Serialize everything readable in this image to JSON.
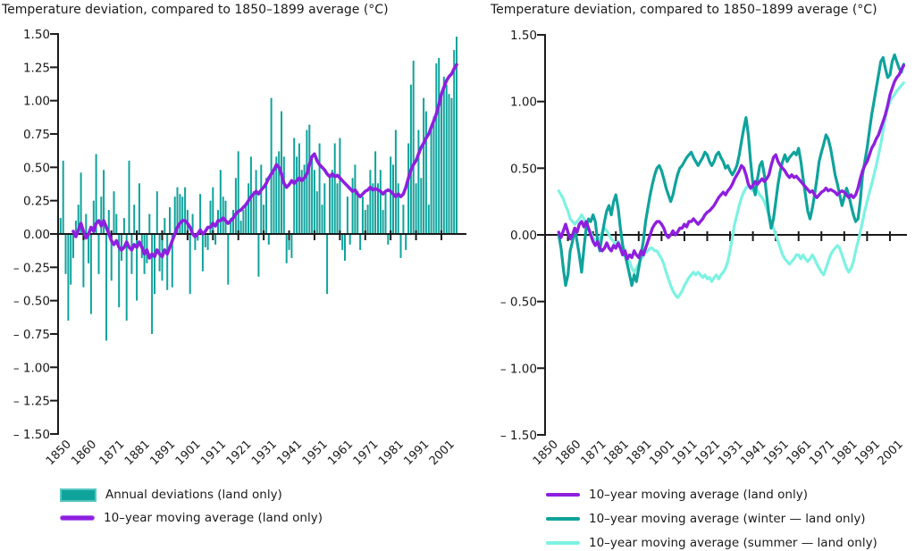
{
  "chart_data": [
    {
      "type": "bar",
      "title": "Temperature deviation, compared to 1850–1899 average (°C)",
      "ylim": [
        -1.5,
        1.5
      ],
      "y_tick_step": 0.25,
      "grid": false,
      "y_ticks": [
        {
          "v": 1.5,
          "label": "1.50"
        },
        {
          "v": 1.25,
          "label": "1.25"
        },
        {
          "v": 1.0,
          "label": "1.00"
        },
        {
          "v": 0.75,
          "label": "0.75"
        },
        {
          "v": 0.5,
          "label": "0.50"
        },
        {
          "v": 0.25,
          "label": "0.25"
        },
        {
          "v": 0.0,
          "label": "0.00"
        },
        {
          "v": -0.25,
          "label": "– 0.25"
        },
        {
          "v": -0.5,
          "label": "– 0.50"
        },
        {
          "v": -0.75,
          "label": "– 0.75"
        },
        {
          "v": -1.0,
          "label": "– 1.00"
        },
        {
          "v": -1.25,
          "label": "– 1.25"
        },
        {
          "v": -1.5,
          "label": "– 1.50"
        }
      ],
      "x_ticks": [
        {
          "year": 1850,
          "label": "1850"
        },
        {
          "year": 1860,
          "label": "1860"
        },
        {
          "year": 1871,
          "label": "1871"
        },
        {
          "year": 1881,
          "label": "1881"
        },
        {
          "year": 1891,
          "label": "1891"
        },
        {
          "year": 1901,
          "label": "1901"
        },
        {
          "year": 1911,
          "label": "1911"
        },
        {
          "year": 1921,
          "label": "1921"
        },
        {
          "year": 1931,
          "label": "1931"
        },
        {
          "year": 1941,
          "label": "1941"
        },
        {
          "year": 1951,
          "label": "1951"
        },
        {
          "year": 1961,
          "label": "1961"
        },
        {
          "year": 1971,
          "label": "1971"
        },
        {
          "year": 1981,
          "label": "1981"
        },
        {
          "year": 1991,
          "label": "1991"
        },
        {
          "year": 2001,
          "label": "2001"
        }
      ],
      "bars": {
        "name": "Annual deviations (land only)",
        "color": "#0fa39c",
        "start_year": 1850,
        "values": [
          -0.28,
          0.12,
          0.55,
          -0.3,
          -0.65,
          -0.38,
          -0.18,
          0.1,
          0.22,
          0.46,
          -0.4,
          0.15,
          -0.22,
          -0.6,
          0.25,
          0.6,
          -0.3,
          0.28,
          0.48,
          -0.8,
          0.18,
          -0.35,
          0.32,
          0.15,
          -0.55,
          -0.2,
          0.12,
          -0.65,
          0.55,
          -0.3,
          0.22,
          -0.5,
          0.38,
          -0.18,
          -0.3,
          -0.22,
          0.15,
          -0.75,
          -0.45,
          0.32,
          -0.28,
          -0.35,
          0.12,
          -0.42,
          0.2,
          -0.4,
          0.28,
          0.35,
          0.3,
          0.28,
          0.35,
          0.18,
          -0.45,
          0.15,
          -0.12,
          -0.05,
          0.3,
          -0.28,
          -0.1,
          -0.12,
          0.25,
          0.35,
          -0.08,
          0.18,
          0.48,
          0.28,
          0.25,
          -0.38,
          0.12,
          0.18,
          0.42,
          0.62,
          0.1,
          0.18,
          0.22,
          0.38,
          0.58,
          0.32,
          0.48,
          -0.32,
          0.52,
          0.22,
          0.42,
          -0.08,
          1.02,
          0.48,
          0.58,
          0.62,
          0.92,
          0.58,
          -0.22,
          -0.12,
          -0.18,
          0.72,
          0.58,
          0.68,
          0.48,
          0.52,
          0.78,
          0.82,
          0.58,
          0.48,
          0.32,
          0.68,
          0.22,
          0.38,
          -0.45,
          0.42,
          0.48,
          0.68,
          0.38,
          0.72,
          -0.12,
          -0.2,
          0.28,
          -0.08,
          0.42,
          0.52,
          0.32,
          -0.12,
          0.28,
          0.18,
          0.22,
          0.48,
          0.38,
          0.62,
          0.38,
          0.48,
          0.18,
          0.32,
          -0.08,
          0.58,
          0.52,
          0.78,
          0.38,
          -0.18,
          0.22,
          -0.12,
          0.68,
          1.12,
          1.3,
          0.38,
          0.78,
          0.42,
          1.02,
          0.92,
          0.22,
          0.82,
          0.88,
          1.28,
          1.32,
          1.02,
          1.18,
          1.12,
          1.05,
          1.02,
          1.38,
          1.48
        ]
      },
      "lines": [
        {
          "name": "10–year moving average (land only)",
          "color": "#8e1fdf",
          "width": 3.6,
          "start_year": 1856,
          "values": [
            0.02,
            -0.02,
            0.03,
            0.08,
            0.02,
            -0.03,
            0.0,
            0.05,
            0.02,
            0.08,
            0.1,
            0.06,
            0.1,
            0.05,
            0.0,
            -0.05,
            -0.08,
            -0.05,
            -0.1,
            -0.12,
            -0.1,
            -0.06,
            -0.1,
            -0.12,
            -0.08,
            -0.1,
            -0.06,
            -0.1,
            -0.15,
            -0.12,
            -0.18,
            -0.15,
            -0.17,
            -0.12,
            -0.15,
            -0.17,
            -0.12,
            -0.15,
            -0.1,
            -0.05,
            0.0,
            0.05,
            0.08,
            0.1,
            0.1,
            0.08,
            0.05,
            0.0,
            -0.02,
            0.0,
            0.03,
            0.0,
            0.02,
            0.05,
            0.05,
            0.08,
            0.06,
            0.1,
            0.1,
            0.12,
            0.1,
            0.08,
            0.1,
            0.12,
            0.15,
            0.17,
            0.18,
            0.2,
            0.22,
            0.25,
            0.28,
            0.3,
            0.32,
            0.3,
            0.33,
            0.35,
            0.38,
            0.42,
            0.45,
            0.48,
            0.52,
            0.5,
            0.45,
            0.38,
            0.35,
            0.37,
            0.4,
            0.38,
            0.4,
            0.42,
            0.4,
            0.42,
            0.45,
            0.52,
            0.58,
            0.6,
            0.55,
            0.52,
            0.5,
            0.48,
            0.45,
            0.43,
            0.45,
            0.43,
            0.44,
            0.42,
            0.4,
            0.38,
            0.36,
            0.34,
            0.32,
            0.33,
            0.3,
            0.28,
            0.3,
            0.32,
            0.33,
            0.35,
            0.33,
            0.34,
            0.33,
            0.32,
            0.3,
            0.32,
            0.33,
            0.32,
            0.3,
            0.28,
            0.3,
            0.28,
            0.3,
            0.35,
            0.42,
            0.48,
            0.52,
            0.55,
            0.6,
            0.65,
            0.68,
            0.72,
            0.75,
            0.8,
            0.85,
            0.9,
            0.97,
            1.05,
            1.1,
            1.15,
            1.18,
            1.2,
            1.24,
            1.27
          ]
        }
      ]
    },
    {
      "type": "line",
      "title": "Temperature deviation, compared to 1850–1899 average (°C)",
      "ylim": [
        -1.5,
        1.5
      ],
      "y_tick_step": 0.5,
      "grid": false,
      "y_ticks": [
        {
          "v": 1.5,
          "label": "1.50"
        },
        {
          "v": 1.0,
          "label": "1.00"
        },
        {
          "v": 0.5,
          "label": "0.50"
        },
        {
          "v": 0.0,
          "label": "0.00"
        },
        {
          "v": -0.5,
          "label": "– 0.50"
        },
        {
          "v": -1.0,
          "label": "– 1.00"
        },
        {
          "v": -1.5,
          "label": "– 1.50"
        }
      ],
      "x_ticks": [
        {
          "year": 1850,
          "label": "1850"
        },
        {
          "year": 1860,
          "label": "1860"
        },
        {
          "year": 1871,
          "label": "1871"
        },
        {
          "year": 1881,
          "label": "1881"
        },
        {
          "year": 1891,
          "label": "1891"
        },
        {
          "year": 1901,
          "label": "1901"
        },
        {
          "year": 1911,
          "label": "1911"
        },
        {
          "year": 1921,
          "label": "1921"
        },
        {
          "year": 1931,
          "label": "1931"
        },
        {
          "year": 1941,
          "label": "1941"
        },
        {
          "year": 1951,
          "label": "1951"
        },
        {
          "year": 1961,
          "label": "1961"
        },
        {
          "year": 1971,
          "label": "1971"
        },
        {
          "year": 1981,
          "label": "1981"
        },
        {
          "year": 1991,
          "label": "1991"
        },
        {
          "year": 2001,
          "label": "2001"
        }
      ],
      "lines": [
        {
          "name": "10–year moving average (summer — land only)",
          "color": "#7df2e2",
          "width": 3.2,
          "start_year": 1856,
          "values": [
            0.33,
            0.3,
            0.27,
            0.22,
            0.18,
            0.12,
            0.1,
            0.08,
            0.1,
            0.12,
            0.15,
            0.12,
            0.08,
            0.05,
            0.02,
            -0.02,
            -0.05,
            -0.05,
            -0.02,
            0.02,
            0.05,
            0.03,
            0.0,
            -0.03,
            -0.05,
            -0.08,
            -0.05,
            -0.08,
            -0.12,
            -0.15,
            -0.18,
            -0.2,
            -0.25,
            -0.28,
            -0.25,
            -0.22,
            -0.18,
            -0.16,
            -0.13,
            -0.12,
            -0.1,
            -0.1,
            -0.12,
            -0.12,
            -0.15,
            -0.18,
            -0.22,
            -0.28,
            -0.33,
            -0.38,
            -0.42,
            -0.45,
            -0.47,
            -0.45,
            -0.42,
            -0.38,
            -0.35,
            -0.32,
            -0.3,
            -0.28,
            -0.3,
            -0.28,
            -0.3,
            -0.32,
            -0.3,
            -0.33,
            -0.32,
            -0.35,
            -0.32,
            -0.3,
            -0.33,
            -0.3,
            -0.28,
            -0.25,
            -0.2,
            -0.12,
            -0.02,
            0.08,
            0.15,
            0.22,
            0.28,
            0.32,
            0.35,
            0.37,
            0.35,
            0.33,
            0.35,
            0.33,
            0.3,
            0.28,
            0.25,
            0.2,
            0.15,
            0.1,
            0.05,
            0.0,
            -0.05,
            -0.1,
            -0.15,
            -0.18,
            -0.2,
            -0.22,
            -0.2,
            -0.18,
            -0.15,
            -0.15,
            -0.18,
            -0.15,
            -0.18,
            -0.2,
            -0.18,
            -0.15,
            -0.18,
            -0.22,
            -0.25,
            -0.28,
            -0.3,
            -0.25,
            -0.2,
            -0.15,
            -0.12,
            -0.1,
            -0.08,
            -0.1,
            -0.15,
            -0.2,
            -0.25,
            -0.28,
            -0.25,
            -0.2,
            -0.12,
            -0.05,
            0.02,
            0.1,
            0.18,
            0.25,
            0.32,
            0.38,
            0.45,
            0.52,
            0.6,
            0.68,
            0.78,
            0.88,
            0.95,
            1.0,
            1.03,
            1.05,
            1.08,
            1.1,
            1.12,
            1.14
          ]
        },
        {
          "name": "10–year moving average (winter — land only)",
          "color": "#0fa39c",
          "width": 3.2,
          "start_year": 1856,
          "values": [
            0.0,
            -0.1,
            -0.25,
            -0.38,
            -0.3,
            -0.12,
            -0.05,
            0.05,
            -0.05,
            -0.15,
            -0.28,
            -0.1,
            0.05,
            0.12,
            0.1,
            0.15,
            0.1,
            -0.05,
            -0.12,
            0.0,
            0.1,
            0.18,
            0.22,
            0.15,
            0.25,
            0.3,
            0.2,
            0.05,
            -0.08,
            -0.15,
            -0.22,
            -0.3,
            -0.38,
            -0.3,
            -0.35,
            -0.25,
            -0.15,
            -0.05,
            0.1,
            0.2,
            0.3,
            0.38,
            0.45,
            0.5,
            0.52,
            0.48,
            0.42,
            0.35,
            0.3,
            0.25,
            0.3,
            0.38,
            0.45,
            0.5,
            0.52,
            0.55,
            0.58,
            0.6,
            0.62,
            0.58,
            0.55,
            0.52,
            0.55,
            0.58,
            0.62,
            0.6,
            0.55,
            0.52,
            0.55,
            0.6,
            0.62,
            0.58,
            0.55,
            0.5,
            0.52,
            0.48,
            0.45,
            0.48,
            0.52,
            0.6,
            0.7,
            0.8,
            0.88,
            0.75,
            0.55,
            0.38,
            0.3,
            0.42,
            0.52,
            0.55,
            0.45,
            0.3,
            0.15,
            0.05,
            0.12,
            0.25,
            0.38,
            0.48,
            0.55,
            0.6,
            0.55,
            0.58,
            0.6,
            0.62,
            0.6,
            0.65,
            0.55,
            0.42,
            0.3,
            0.18,
            0.12,
            0.2,
            0.3,
            0.42,
            0.55,
            0.62,
            0.68,
            0.75,
            0.72,
            0.65,
            0.55,
            0.45,
            0.38,
            0.3,
            0.22,
            0.28,
            0.35,
            0.3,
            0.22,
            0.15,
            0.1,
            0.12,
            0.25,
            0.45,
            0.55,
            0.65,
            0.78,
            0.9,
            1.0,
            1.1,
            1.2,
            1.3,
            1.33,
            1.25,
            1.18,
            1.2,
            1.3,
            1.35,
            1.3,
            1.25,
            1.22,
            1.28
          ]
        },
        {
          "name": "10–year moving average (land only)",
          "color": "#8e1fdf",
          "width": 3.4,
          "start_year": 1856,
          "values": [
            0.02,
            -0.02,
            0.03,
            0.08,
            0.02,
            -0.03,
            0.0,
            0.05,
            0.02,
            0.08,
            0.1,
            0.06,
            0.1,
            0.05,
            0.0,
            -0.05,
            -0.08,
            -0.05,
            -0.1,
            -0.12,
            -0.1,
            -0.06,
            -0.1,
            -0.12,
            -0.08,
            -0.1,
            -0.06,
            -0.1,
            -0.15,
            -0.12,
            -0.18,
            -0.15,
            -0.17,
            -0.12,
            -0.15,
            -0.17,
            -0.12,
            -0.15,
            -0.1,
            -0.05,
            0.0,
            0.05,
            0.08,
            0.1,
            0.1,
            0.08,
            0.05,
            0.0,
            -0.02,
            0.0,
            0.03,
            0.0,
            0.02,
            0.05,
            0.05,
            0.08,
            0.06,
            0.1,
            0.1,
            0.12,
            0.1,
            0.08,
            0.1,
            0.12,
            0.15,
            0.17,
            0.18,
            0.2,
            0.22,
            0.25,
            0.28,
            0.3,
            0.32,
            0.3,
            0.33,
            0.35,
            0.38,
            0.42,
            0.45,
            0.48,
            0.52,
            0.5,
            0.45,
            0.38,
            0.35,
            0.37,
            0.4,
            0.38,
            0.4,
            0.42,
            0.4,
            0.42,
            0.45,
            0.52,
            0.58,
            0.6,
            0.55,
            0.52,
            0.5,
            0.48,
            0.45,
            0.43,
            0.45,
            0.43,
            0.44,
            0.42,
            0.4,
            0.38,
            0.36,
            0.34,
            0.32,
            0.33,
            0.3,
            0.28,
            0.3,
            0.32,
            0.33,
            0.35,
            0.33,
            0.34,
            0.33,
            0.32,
            0.3,
            0.32,
            0.33,
            0.32,
            0.3,
            0.28,
            0.3,
            0.28,
            0.3,
            0.35,
            0.42,
            0.48,
            0.52,
            0.55,
            0.6,
            0.65,
            0.68,
            0.72,
            0.75,
            0.8,
            0.85,
            0.9,
            0.97,
            1.05,
            1.1,
            1.15,
            1.18,
            1.2,
            1.24,
            1.27
          ]
        }
      ]
    }
  ],
  "legends": {
    "left": {
      "items": [
        {
          "label": "Annual deviations (land only)",
          "color": "#0fa39c",
          "swatch": "bar"
        },
        {
          "label": "10–year moving average (land only)",
          "color": "#8e1fdf",
          "swatch": "thick-line"
        }
      ]
    },
    "right": {
      "items": [
        {
          "label": "10–year moving average (land only)",
          "color": "#8e1fdf",
          "swatch": "line"
        },
        {
          "label": "10–year moving average (winter — land only)",
          "color": "#0fa39c",
          "swatch": "line"
        },
        {
          "label": "10–year moving average (summer — land only)",
          "color": "#7df2e2",
          "swatch": "line"
        }
      ]
    }
  },
  "colors": {
    "annual_bars": "#0fa39c",
    "moving_average_land": "#8e1fdf",
    "moving_average_winter": "#0fa39c",
    "moving_average_summer": "#7df2e2",
    "axis": "#1a1a1a",
    "background": "#ffffff"
  }
}
